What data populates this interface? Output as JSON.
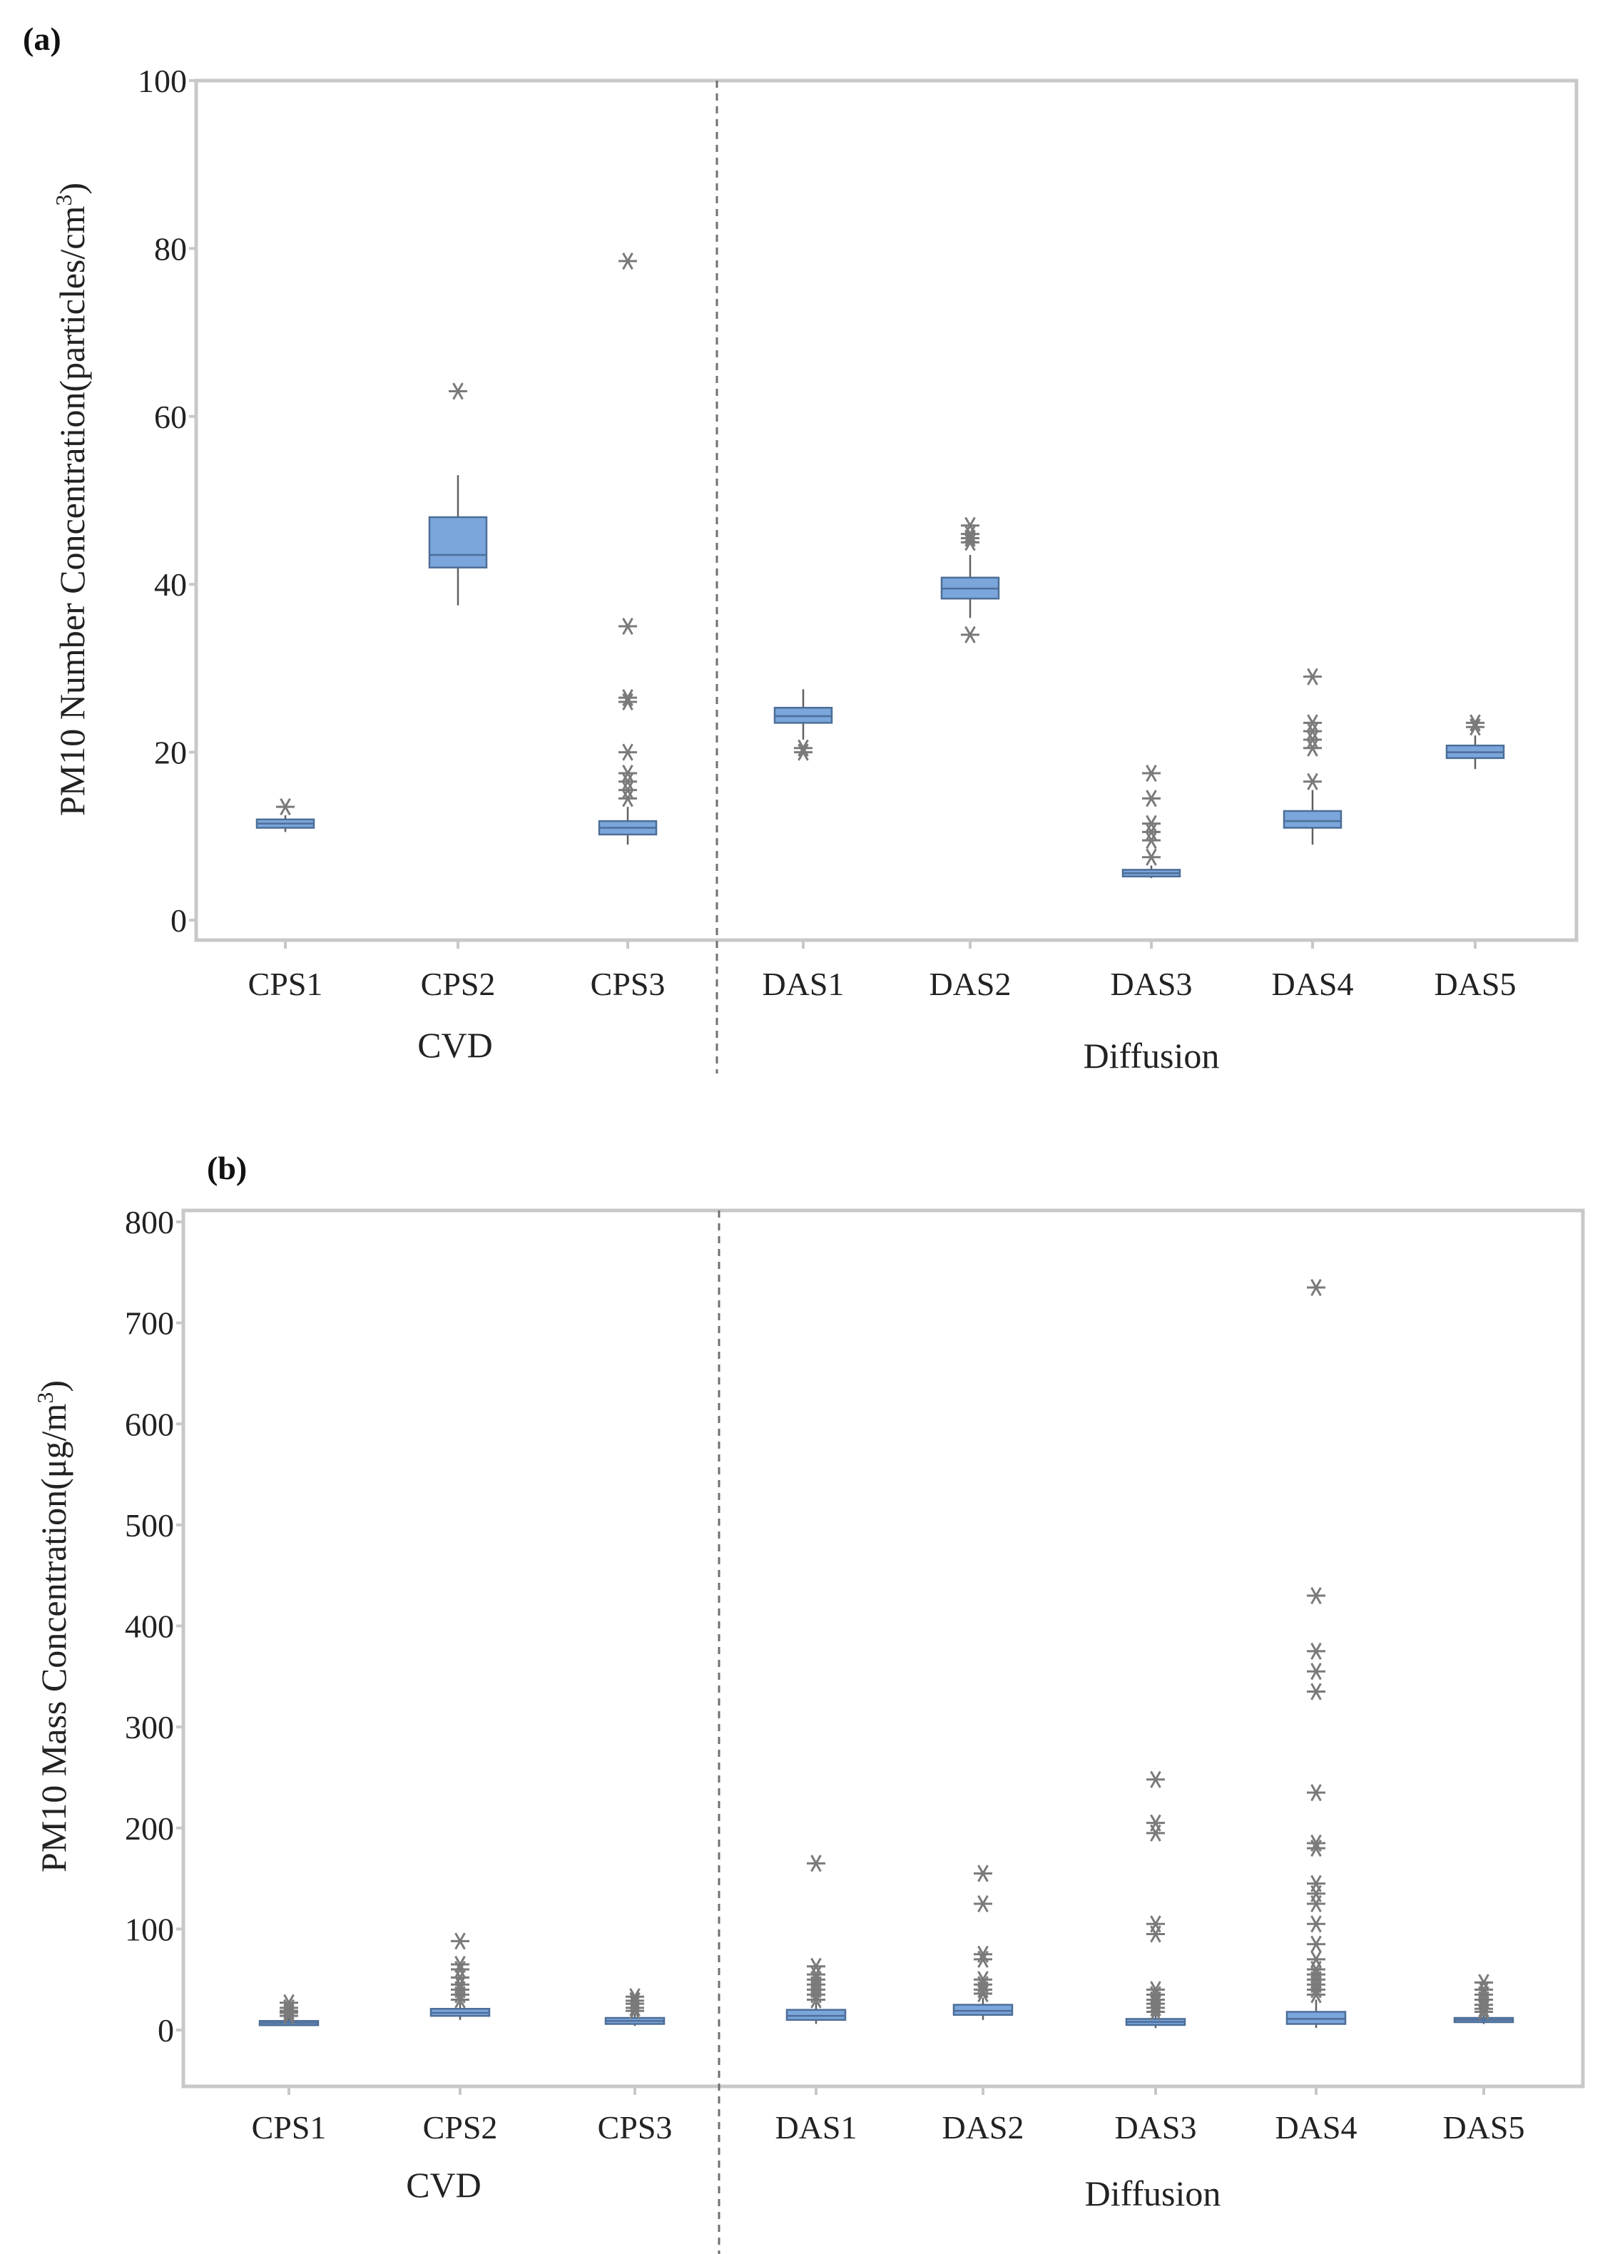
{
  "colors": {
    "box_fill": "#7aa6dc",
    "box_stroke": "#4d6e97",
    "whisker": "#606060",
    "outlier": "#7a7a7a",
    "frame": "#c8c8c8",
    "divider": "#707070"
  },
  "chart_data": [
    {
      "type": "box",
      "panel_label": "(a)",
      "ylabel_main": "PM10 Number Concentration(particles/cm",
      "ylabel_sup": "3",
      "ylabel_end": ")",
      "ylim": [
        0,
        100
      ],
      "yticks": [
        0,
        20,
        40,
        60,
        80,
        100
      ],
      "groups": [
        {
          "name": "CVD",
          "members": [
            "CPS1",
            "CPS2",
            "CPS3"
          ]
        },
        {
          "name": "Diffusion",
          "members": [
            "DAS1",
            "DAS2",
            "DAS3",
            "DAS4",
            "DAS5"
          ]
        }
      ],
      "categories": [
        "CPS1",
        "CPS2",
        "CPS3",
        "DAS1",
        "DAS2",
        "DAS3",
        "DAS4",
        "DAS5"
      ],
      "boxes": [
        {
          "name": "CPS1",
          "whisker_low": 10.5,
          "q1": 11.0,
          "median": 11.5,
          "q3": 12.0,
          "whisker_high": 12.5,
          "outliers": [
            13.5
          ]
        },
        {
          "name": "CPS2",
          "whisker_low": 37.5,
          "q1": 42.0,
          "median": 43.5,
          "q3": 48.0,
          "whisker_high": 53.0,
          "outliers": [
            63.0
          ]
        },
        {
          "name": "CPS3",
          "whisker_low": 9.0,
          "q1": 10.2,
          "median": 11.0,
          "q3": 11.8,
          "whisker_high": 13.5,
          "outliers": [
            14.5,
            15.5,
            16.5,
            17.5,
            20.0,
            26.0,
            26.5,
            35.0,
            78.5
          ]
        },
        {
          "name": "DAS1",
          "whisker_low": 21.5,
          "q1": 23.5,
          "median": 24.3,
          "q3": 25.3,
          "whisker_high": 27.5,
          "outliers": [
            20.0,
            20.5
          ]
        },
        {
          "name": "DAS2",
          "whisker_low": 36.0,
          "q1": 38.3,
          "median": 39.5,
          "q3": 40.8,
          "whisker_high": 43.5,
          "outliers": [
            34.0,
            45.0,
            45.5,
            46.0,
            47.0
          ]
        },
        {
          "name": "DAS3",
          "whisker_low": 5.0,
          "q1": 5.2,
          "median": 5.6,
          "q3": 6.0,
          "whisker_high": 6.5,
          "outliers": [
            7.5,
            9.5,
            10.5,
            11.5,
            14.5,
            17.5
          ]
        },
        {
          "name": "DAS4",
          "whisker_low": 9.0,
          "q1": 11.0,
          "median": 11.8,
          "q3": 13.0,
          "whisker_high": 15.5,
          "outliers": [
            16.5,
            20.5,
            21.5,
            22.5,
            23.5,
            29.0
          ]
        },
        {
          "name": "DAS5",
          "whisker_low": 18.0,
          "q1": 19.3,
          "median": 20.0,
          "q3": 20.8,
          "whisker_high": 22.0,
          "outliers": [
            23.0,
            23.5
          ]
        }
      ]
    },
    {
      "type": "box",
      "panel_label": "(b)",
      "ylabel_main": "PM10 Mass Concentration(μg/m",
      "ylabel_sup": "3",
      "ylabel_end": ")",
      "ylim": [
        -40,
        810
      ],
      "yticks": [
        0,
        100,
        200,
        300,
        400,
        500,
        600,
        700,
        800
      ],
      "groups": [
        {
          "name": "CVD",
          "members": [
            "CPS1",
            "CPS2",
            "CPS3"
          ]
        },
        {
          "name": "Diffusion",
          "members": [
            "DAS1",
            "DAS2",
            "DAS3",
            "DAS4",
            "DAS5"
          ]
        }
      ],
      "categories": [
        "CPS1",
        "CPS2",
        "CPS3",
        "DAS1",
        "DAS2",
        "DAS3",
        "DAS4",
        "DAS5"
      ],
      "boxes": [
        {
          "name": "CPS1",
          "whisker_low": 4,
          "q1": 5,
          "median": 7,
          "q3": 9,
          "whisker_high": 12,
          "outliers": [
            14,
            17,
            19,
            22,
            27
          ]
        },
        {
          "name": "CPS2",
          "whisker_low": 10,
          "q1": 14,
          "median": 17,
          "q3": 21,
          "whisker_high": 27,
          "outliers": [
            30,
            35,
            40,
            45,
            52,
            60,
            65,
            88
          ]
        },
        {
          "name": "CPS3",
          "whisker_low": 4,
          "q1": 6,
          "median": 9,
          "q3": 12,
          "whisker_high": 16,
          "outliers": [
            19,
            22,
            26,
            29,
            33
          ]
        },
        {
          "name": "DAS1",
          "whisker_low": 6,
          "q1": 10,
          "median": 14,
          "q3": 20,
          "whisker_high": 27,
          "outliers": [
            30,
            35,
            40,
            45,
            50,
            55,
            63,
            165
          ]
        },
        {
          "name": "DAS2",
          "whisker_low": 10,
          "q1": 15,
          "median": 19,
          "q3": 25,
          "whisker_high": 32,
          "outliers": [
            36,
            40,
            45,
            50,
            70,
            75,
            125,
            155
          ]
        },
        {
          "name": "DAS3",
          "whisker_low": 2,
          "q1": 5,
          "median": 8,
          "q3": 11,
          "whisker_high": 15,
          "outliers": [
            18,
            22,
            26,
            30,
            35,
            40,
            95,
            105,
            195,
            205,
            248
          ]
        },
        {
          "name": "DAS4",
          "whisker_low": 2,
          "q1": 6,
          "median": 11,
          "q3": 18,
          "whisker_high": 30,
          "outliers": [
            35,
            40,
            45,
            50,
            55,
            60,
            70,
            85,
            105,
            125,
            135,
            145,
            180,
            185,
            235,
            335,
            355,
            375,
            430,
            735
          ]
        },
        {
          "name": "DAS5",
          "whisker_low": 6,
          "q1": 8,
          "median": 10,
          "q3": 12,
          "whisker_high": 15,
          "outliers": [
            18,
            21,
            25,
            30,
            35,
            40,
            47
          ]
        }
      ]
    }
  ]
}
